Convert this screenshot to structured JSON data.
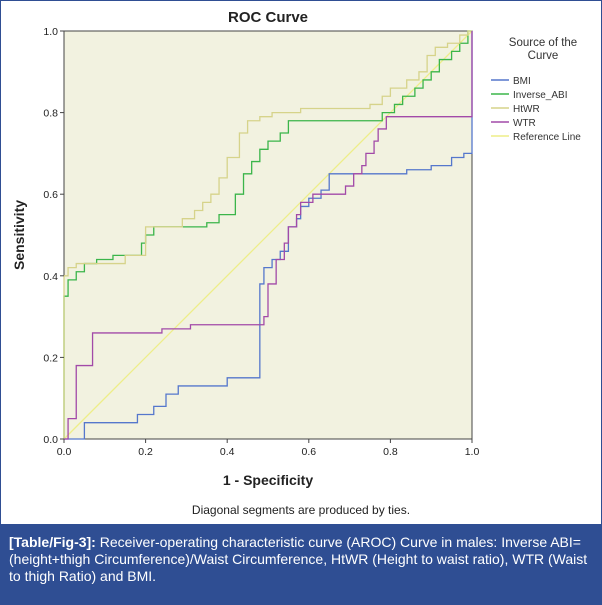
{
  "caption": {
    "label": "[Table/Fig-3]:",
    "text": " Receiver-operating characteristic curve (AROC) Curve in males: Inverse ABI=(height+thigh Circumference)/Waist Circumference, HtWR (Height to waist ratio), WTR (Waist to thigh Ratio) and BMI."
  },
  "footnote": "Diagonal segments are produced by ties.",
  "chart_data": {
    "type": "line",
    "title": "ROC Curve",
    "xlabel": "1 - Specificity",
    "ylabel": "Sensitivity",
    "xlim": [
      0,
      1
    ],
    "ylim": [
      0,
      1
    ],
    "xticks": [
      "0.0",
      "0.2",
      "0.4",
      "0.6",
      "0.8",
      "1.0"
    ],
    "yticks": [
      "0.0",
      "0.2",
      "0.4",
      "0.6",
      "0.8",
      "1.0"
    ],
    "background": "#f2f2e0",
    "legend_title": "Source of the Curve",
    "legend_position": "right",
    "series": [
      {
        "name": "BMI",
        "color": "#5577cc",
        "points": [
          [
            0,
            0
          ],
          [
            0.05,
            0
          ],
          [
            0.05,
            0.04
          ],
          [
            0.18,
            0.04
          ],
          [
            0.18,
            0.06
          ],
          [
            0.22,
            0.06
          ],
          [
            0.22,
            0.08
          ],
          [
            0.25,
            0.08
          ],
          [
            0.25,
            0.11
          ],
          [
            0.28,
            0.11
          ],
          [
            0.28,
            0.13
          ],
          [
            0.4,
            0.13
          ],
          [
            0.4,
            0.15
          ],
          [
            0.48,
            0.15
          ],
          [
            0.48,
            0.38
          ],
          [
            0.49,
            0.38
          ],
          [
            0.49,
            0.42
          ],
          [
            0.51,
            0.42
          ],
          [
            0.51,
            0.44
          ],
          [
            0.53,
            0.44
          ],
          [
            0.53,
            0.46
          ],
          [
            0.55,
            0.46
          ],
          [
            0.55,
            0.52
          ],
          [
            0.57,
            0.52
          ],
          [
            0.57,
            0.54
          ],
          [
            0.58,
            0.54
          ],
          [
            0.58,
            0.57
          ],
          [
            0.6,
            0.57
          ],
          [
            0.6,
            0.59
          ],
          [
            0.63,
            0.59
          ],
          [
            0.63,
            0.61
          ],
          [
            0.65,
            0.61
          ],
          [
            0.65,
            0.65
          ],
          [
            0.84,
            0.65
          ],
          [
            0.84,
            0.66
          ],
          [
            0.9,
            0.66
          ],
          [
            0.9,
            0.67
          ],
          [
            0.95,
            0.67
          ],
          [
            0.95,
            0.69
          ],
          [
            0.98,
            0.69
          ],
          [
            0.98,
            0.7
          ],
          [
            1,
            0.7
          ],
          [
            1,
            1
          ]
        ]
      },
      {
        "name": "Inverse_ABI",
        "color": "#3bb54a",
        "points": [
          [
            0,
            0
          ],
          [
            0,
            0.35
          ],
          [
            0.01,
            0.35
          ],
          [
            0.01,
            0.39
          ],
          [
            0.03,
            0.39
          ],
          [
            0.03,
            0.41
          ],
          [
            0.05,
            0.41
          ],
          [
            0.05,
            0.43
          ],
          [
            0.08,
            0.43
          ],
          [
            0.08,
            0.44
          ],
          [
            0.12,
            0.44
          ],
          [
            0.12,
            0.45
          ],
          [
            0.19,
            0.45
          ],
          [
            0.19,
            0.48
          ],
          [
            0.2,
            0.48
          ],
          [
            0.2,
            0.5
          ],
          [
            0.22,
            0.5
          ],
          [
            0.22,
            0.52
          ],
          [
            0.35,
            0.52
          ],
          [
            0.35,
            0.53
          ],
          [
            0.38,
            0.53
          ],
          [
            0.38,
            0.55
          ],
          [
            0.42,
            0.55
          ],
          [
            0.42,
            0.6
          ],
          [
            0.44,
            0.6
          ],
          [
            0.44,
            0.65
          ],
          [
            0.46,
            0.65
          ],
          [
            0.46,
            0.68
          ],
          [
            0.48,
            0.68
          ],
          [
            0.48,
            0.71
          ],
          [
            0.5,
            0.71
          ],
          [
            0.5,
            0.73
          ],
          [
            0.53,
            0.73
          ],
          [
            0.53,
            0.75
          ],
          [
            0.55,
            0.75
          ],
          [
            0.55,
            0.78
          ],
          [
            0.78,
            0.78
          ],
          [
            0.78,
            0.8
          ],
          [
            0.81,
            0.8
          ],
          [
            0.81,
            0.82
          ],
          [
            0.83,
            0.82
          ],
          [
            0.83,
            0.84
          ],
          [
            0.86,
            0.84
          ],
          [
            0.86,
            0.86
          ],
          [
            0.88,
            0.86
          ],
          [
            0.88,
            0.88
          ],
          [
            0.9,
            0.88
          ],
          [
            0.9,
            0.9
          ],
          [
            0.92,
            0.9
          ],
          [
            0.92,
            0.93
          ],
          [
            0.95,
            0.93
          ],
          [
            0.95,
            0.95
          ],
          [
            0.97,
            0.95
          ],
          [
            0.97,
            0.97
          ],
          [
            0.99,
            0.97
          ],
          [
            0.99,
            1
          ],
          [
            1,
            1
          ]
        ]
      },
      {
        "name": "HtWR",
        "color": "#d6d38a",
        "points": [
          [
            0,
            0
          ],
          [
            0,
            0.4
          ],
          [
            0.01,
            0.4
          ],
          [
            0.01,
            0.42
          ],
          [
            0.03,
            0.42
          ],
          [
            0.03,
            0.43
          ],
          [
            0.15,
            0.43
          ],
          [
            0.15,
            0.45
          ],
          [
            0.2,
            0.45
          ],
          [
            0.2,
            0.52
          ],
          [
            0.29,
            0.52
          ],
          [
            0.29,
            0.54
          ],
          [
            0.32,
            0.54
          ],
          [
            0.32,
            0.56
          ],
          [
            0.34,
            0.56
          ],
          [
            0.34,
            0.58
          ],
          [
            0.36,
            0.58
          ],
          [
            0.36,
            0.6
          ],
          [
            0.38,
            0.6
          ],
          [
            0.38,
            0.64
          ],
          [
            0.4,
            0.64
          ],
          [
            0.4,
            0.69
          ],
          [
            0.43,
            0.69
          ],
          [
            0.43,
            0.75
          ],
          [
            0.45,
            0.75
          ],
          [
            0.45,
            0.78
          ],
          [
            0.48,
            0.78
          ],
          [
            0.48,
            0.79
          ],
          [
            0.51,
            0.79
          ],
          [
            0.51,
            0.8
          ],
          [
            0.58,
            0.8
          ],
          [
            0.58,
            0.81
          ],
          [
            0.75,
            0.81
          ],
          [
            0.75,
            0.82
          ],
          [
            0.78,
            0.82
          ],
          [
            0.78,
            0.84
          ],
          [
            0.8,
            0.84
          ],
          [
            0.8,
            0.86
          ],
          [
            0.84,
            0.86
          ],
          [
            0.84,
            0.88
          ],
          [
            0.87,
            0.88
          ],
          [
            0.87,
            0.9
          ],
          [
            0.89,
            0.9
          ],
          [
            0.89,
            0.94
          ],
          [
            0.91,
            0.94
          ],
          [
            0.91,
            0.96
          ],
          [
            0.94,
            0.96
          ],
          [
            0.94,
            0.97
          ],
          [
            0.97,
            0.97
          ],
          [
            0.97,
            0.99
          ],
          [
            0.99,
            0.99
          ],
          [
            0.99,
            1
          ],
          [
            1,
            1
          ]
        ]
      },
      {
        "name": "WTR",
        "color": "#a24aa8",
        "points": [
          [
            0,
            0
          ],
          [
            0.01,
            0
          ],
          [
            0.01,
            0.05
          ],
          [
            0.03,
            0.05
          ],
          [
            0.03,
            0.18
          ],
          [
            0.07,
            0.18
          ],
          [
            0.07,
            0.26
          ],
          [
            0.24,
            0.26
          ],
          [
            0.24,
            0.27
          ],
          [
            0.31,
            0.27
          ],
          [
            0.31,
            0.28
          ],
          [
            0.49,
            0.28
          ],
          [
            0.49,
            0.3
          ],
          [
            0.5,
            0.3
          ],
          [
            0.5,
            0.38
          ],
          [
            0.52,
            0.38
          ],
          [
            0.52,
            0.44
          ],
          [
            0.54,
            0.44
          ],
          [
            0.54,
            0.48
          ],
          [
            0.55,
            0.48
          ],
          [
            0.55,
            0.52
          ],
          [
            0.57,
            0.52
          ],
          [
            0.57,
            0.55
          ],
          [
            0.58,
            0.55
          ],
          [
            0.58,
            0.58
          ],
          [
            0.61,
            0.58
          ],
          [
            0.61,
            0.6
          ],
          [
            0.69,
            0.6
          ],
          [
            0.69,
            0.62
          ],
          [
            0.71,
            0.62
          ],
          [
            0.71,
            0.65
          ],
          [
            0.73,
            0.65
          ],
          [
            0.73,
            0.67
          ],
          [
            0.74,
            0.67
          ],
          [
            0.74,
            0.7
          ],
          [
            0.76,
            0.7
          ],
          [
            0.76,
            0.73
          ],
          [
            0.77,
            0.73
          ],
          [
            0.77,
            0.76
          ],
          [
            0.79,
            0.76
          ],
          [
            0.79,
            0.79
          ],
          [
            1,
            0.79
          ],
          [
            1,
            1
          ]
        ]
      },
      {
        "name": "Reference Line",
        "color": "#eeee88",
        "points": [
          [
            0,
            0
          ],
          [
            1,
            1
          ]
        ]
      }
    ]
  }
}
